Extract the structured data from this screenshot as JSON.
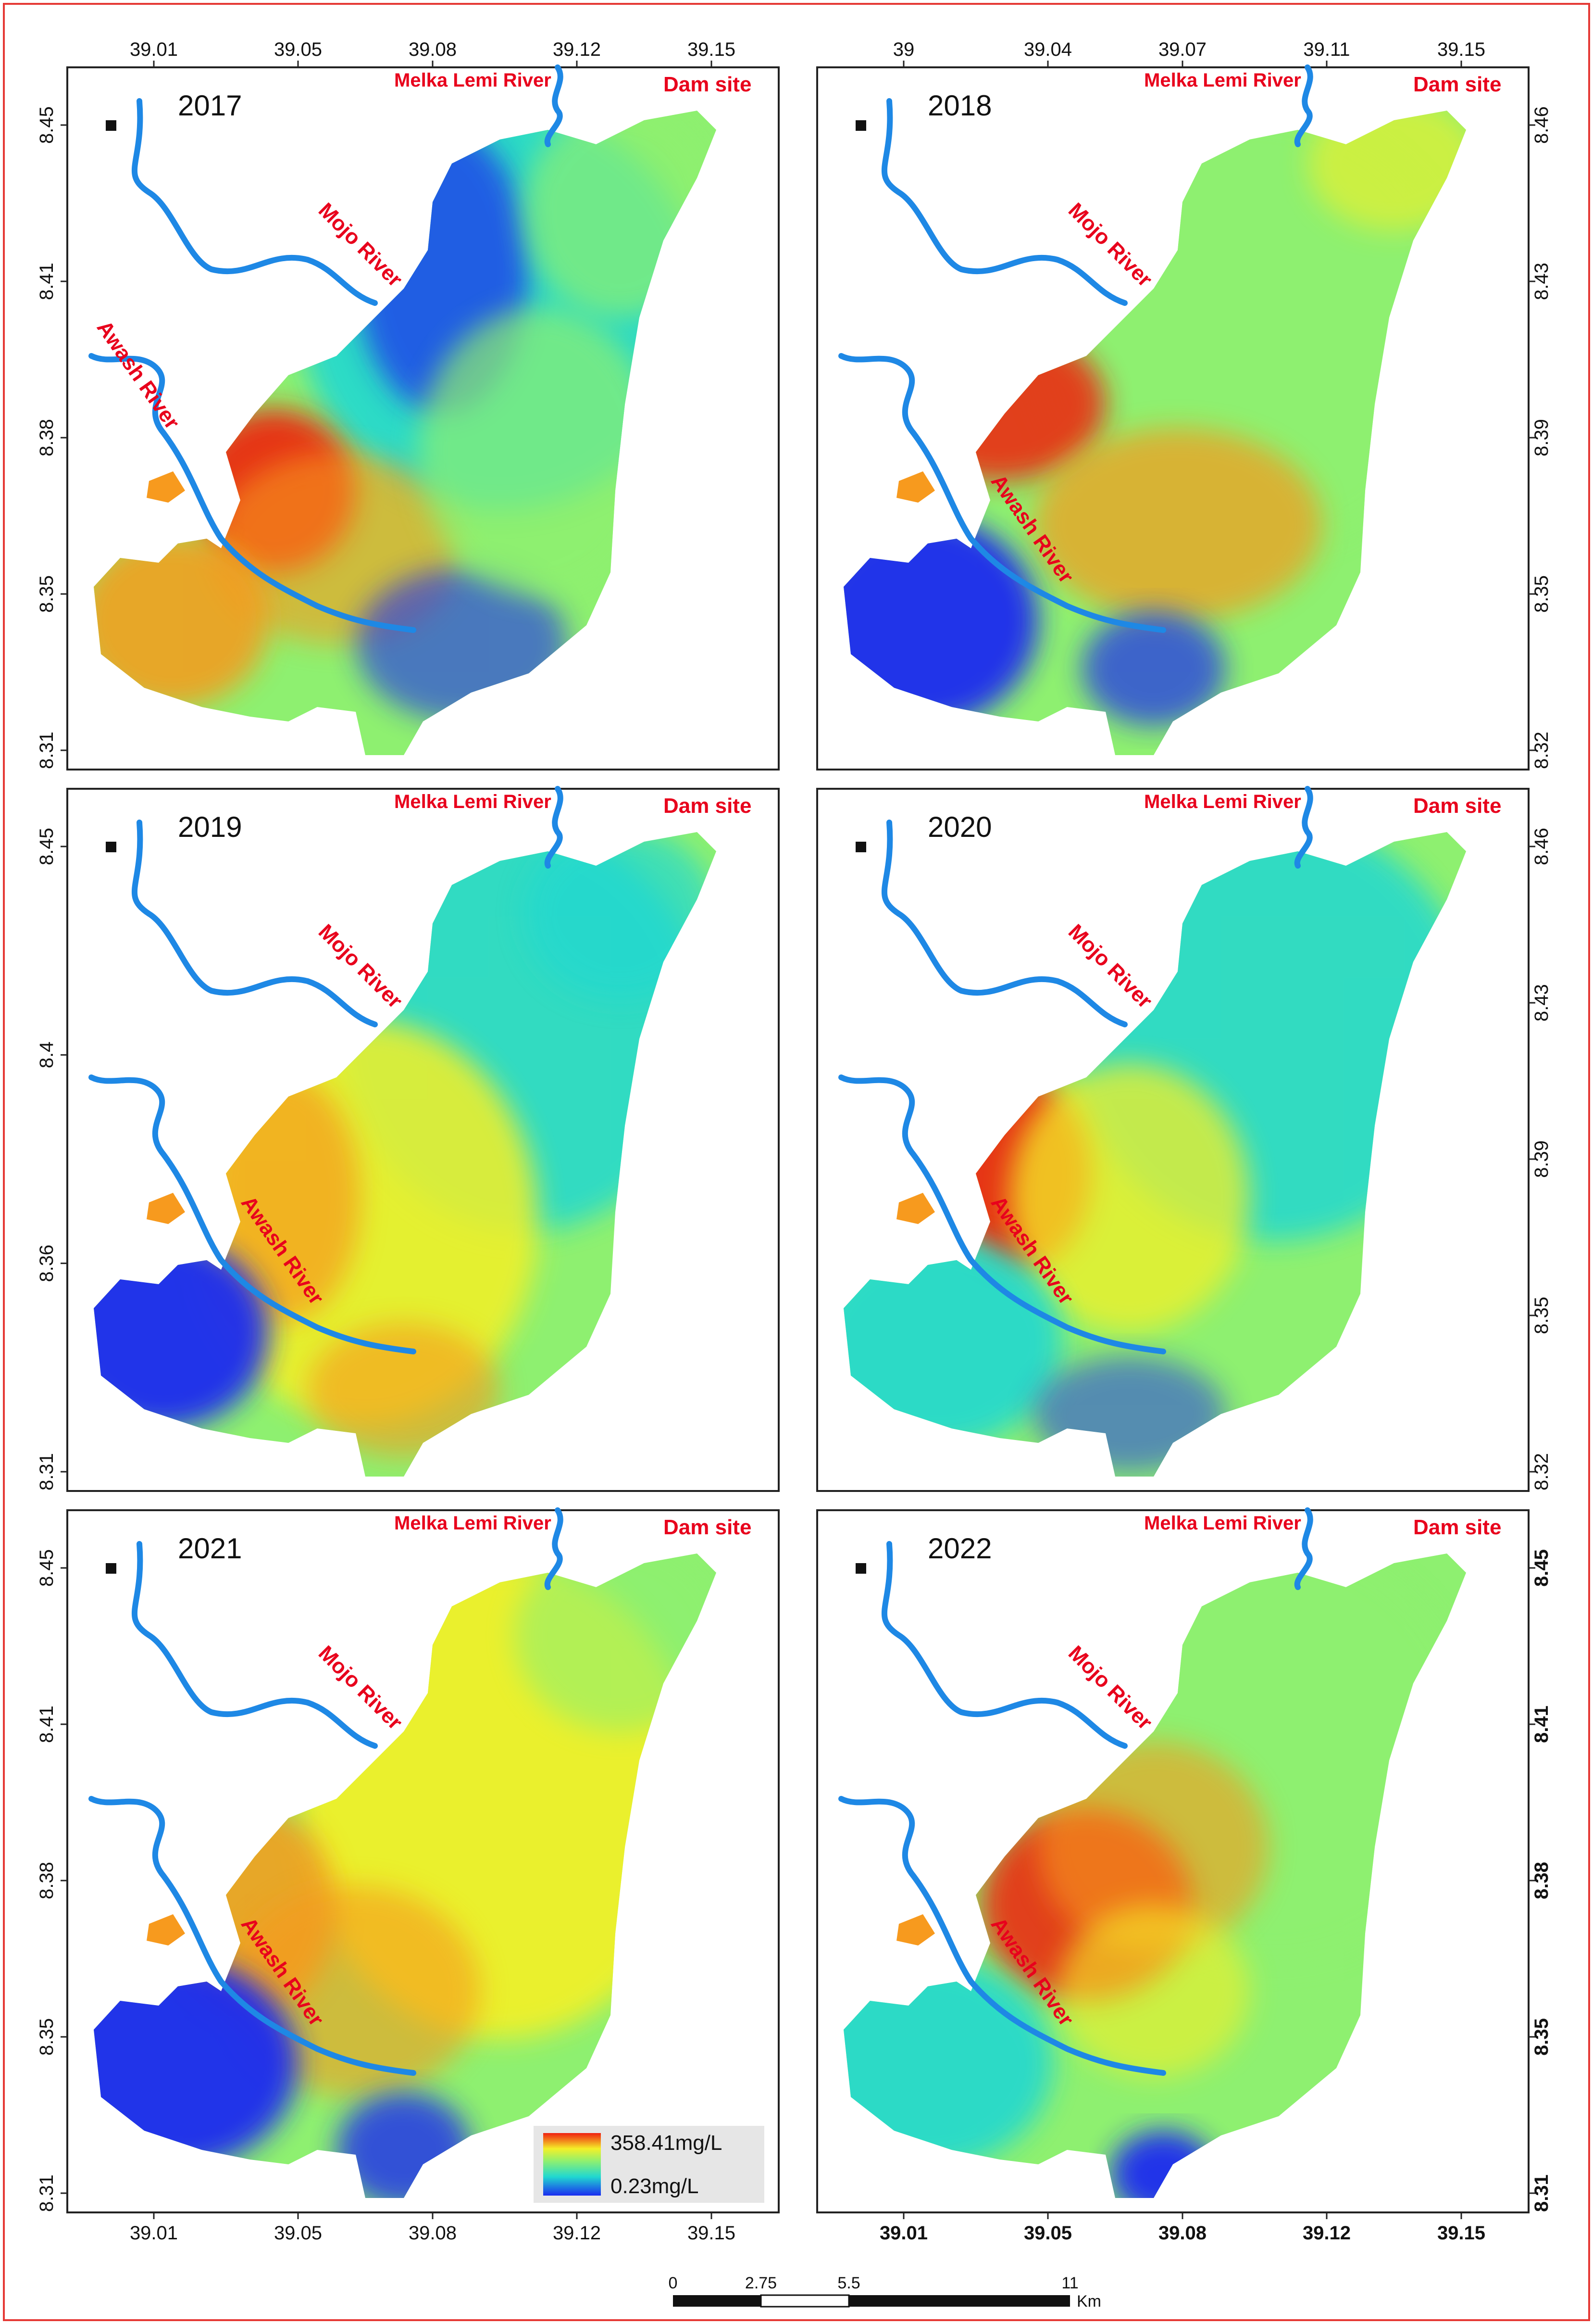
{
  "colors": {
    "frame_border": "#e53935",
    "river": "#1e88e5",
    "label_red": "#e8001c",
    "panel_border": "#222222",
    "water_low": "#1a2cf0",
    "water_mid": "#20d8d0",
    "water_green": "#8ef070",
    "water_yellow": "#f4f028",
    "water_orange": "#f79a1e",
    "water_high": "#f02010"
  },
  "labels": {
    "melka_lemi": "Melka Lemi River",
    "dam_site": "Dam site",
    "mojo": "Mojo River",
    "awash": "Awash River"
  },
  "panels": [
    {
      "year": "2017",
      "top_ticks": [
        "39.01",
        "39.05",
        "39.08",
        "39.12",
        "39.15"
      ],
      "bottom_ticks": [],
      "left_ticks": [
        "8.45",
        "8.41",
        "8.38",
        "8.35",
        "8.31"
      ],
      "right_ticks": []
    },
    {
      "year": "2018",
      "top_ticks": [
        "39",
        "39.04",
        "39.07",
        "39.11",
        "39.15"
      ],
      "bottom_ticks": [],
      "left_ticks": [],
      "right_ticks": [
        "8.46",
        "8.43",
        "8.39",
        "8.35",
        "8.32"
      ]
    },
    {
      "year": "2019",
      "top_ticks": [],
      "bottom_ticks": [],
      "left_ticks": [
        "8.45",
        "8.4",
        "8.36",
        "8.31"
      ],
      "right_ticks": []
    },
    {
      "year": "2020",
      "top_ticks": [],
      "bottom_ticks": [],
      "left_ticks": [],
      "right_ticks": [
        "8.46",
        "8.43",
        "8.39",
        "8.35",
        "8.32"
      ]
    },
    {
      "year": "2021",
      "top_ticks": [],
      "bottom_ticks": [
        "39.01",
        "39.05",
        "39.08",
        "39.12",
        "39.15"
      ],
      "left_ticks": [
        "8.45",
        "8.41",
        "8.38",
        "8.35",
        "8.31"
      ],
      "right_ticks": []
    },
    {
      "year": "2022",
      "top_ticks": [],
      "bottom_ticks": [
        "39.01",
        "39.05",
        "39.08",
        "39.12",
        "39.15"
      ],
      "left_ticks": [],
      "right_ticks": [
        "8.45",
        "8.41",
        "8.38",
        "8.35",
        "8.31"
      ]
    }
  ],
  "legend": {
    "max": "358.41mg/L",
    "min": "0.23mg/L"
  },
  "scale_bar": {
    "ticks": [
      "0",
      "2.75",
      "5.5",
      "11"
    ],
    "unit": "Km"
  }
}
